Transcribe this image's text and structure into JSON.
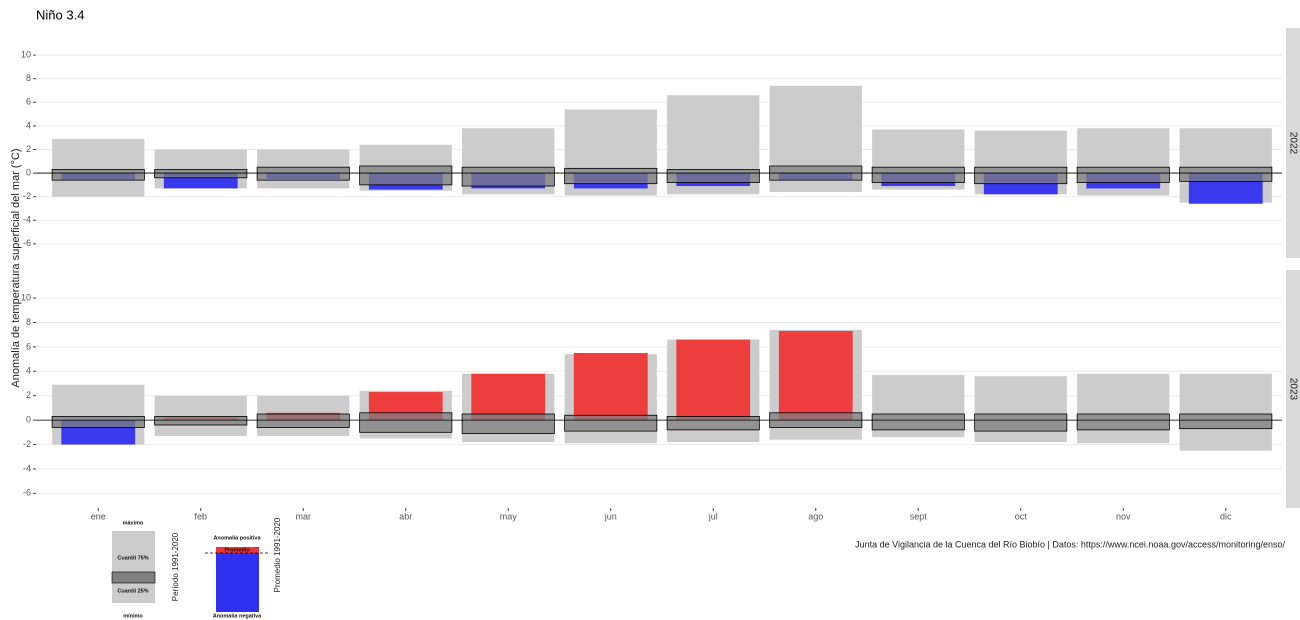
{
  "chart_data": {
    "type": "bar",
    "title": "Niño 3.4",
    "y_label": "Anomalía de temperatura superficial del mar (°C)",
    "caption": "Junta de Vigilancia de la Cuenca del Río Biobío | Datos: https://www.ncei.noaa.gov/access/monitoring/enso/",
    "categories": [
      "ene",
      "feb",
      "mar",
      "abr",
      "may",
      "jun",
      "jul",
      "ago",
      "sept",
      "oct",
      "nov",
      "dic"
    ],
    "ylim": [
      -7.2,
      12.3
    ],
    "yticks": [
      -6,
      -4,
      -2,
      0,
      2,
      4,
      6,
      8,
      10
    ],
    "grid": true,
    "climatology": {
      "max": [
        2.9,
        2.0,
        2.0,
        2.4,
        3.8,
        5.4,
        6.6,
        7.4,
        3.7,
        3.6,
        3.8,
        3.8
      ],
      "q75": [
        0.3,
        0.3,
        0.5,
        0.6,
        0.5,
        0.4,
        0.3,
        0.6,
        0.5,
        0.5,
        0.5,
        0.5
      ],
      "q25": [
        -0.6,
        -0.4,
        -0.6,
        -1.0,
        -1.1,
        -0.9,
        -0.8,
        -0.6,
        -0.8,
        -0.9,
        -0.8,
        -0.7
      ],
      "min": [
        -2.0,
        -1.3,
        -1.3,
        -1.5,
        -1.8,
        -1.9,
        -1.8,
        -1.6,
        -1.4,
        -1.8,
        -1.9,
        -2.5
      ],
      "range_color": "#cccccc",
      "box_color": "#7f7f7f"
    },
    "positive_color": "#ee3535",
    "negative_color": "#3030f0",
    "facets": [
      {
        "label": "2022",
        "values": [
          -0.6,
          -1.3,
          -0.5,
          -1.4,
          -1.3,
          -1.3,
          -1.1,
          -0.6,
          -1.1,
          -1.8,
          -1.3,
          -2.6
        ]
      },
      {
        "label": "2023",
        "values": [
          -2.0,
          0.2,
          0.6,
          2.3,
          3.8,
          5.5,
          6.6,
          7.3,
          null,
          null,
          null,
          null
        ]
      }
    ],
    "legend": {
      "max_label": "máximo",
      "q75_label": "Cuantil 75%",
      "q25_label": "Cuantil 25%",
      "min_label": "mínimo",
      "period_label": "Período 1991-2020",
      "positive_label": "Anomalía positiva",
      "mean_label": "Promedio",
      "negative_label": "Anomalía negativa",
      "mean_period_label": "Promedio 1991-2020"
    }
  }
}
